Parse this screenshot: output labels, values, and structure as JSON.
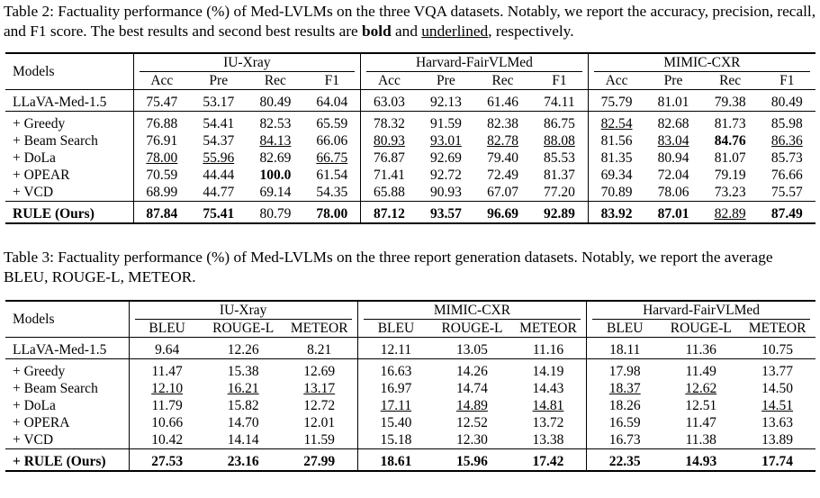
{
  "table2": {
    "caption": [
      "Table 2: Factuality performance (%) of Med-LVLMs on the three VQA datasets. Notably, we report the accuracy, precision, recall, and F1 score. The best results and second best results are ",
      "bold",
      " and ",
      "underlined",
      ", respectively."
    ],
    "header": {
      "models": "Models",
      "groups": [
        {
          "name": "IU-Xray",
          "columns": [
            "Acc",
            "Pre",
            "Rec",
            "F1"
          ]
        },
        {
          "name": "Harvard-FairVLMed",
          "columns": [
            "Acc",
            "Pre",
            "Rec",
            "F1"
          ]
        },
        {
          "name": "MIMIC-CXR",
          "columns": [
            "Acc",
            "Pre",
            "Rec",
            "F1"
          ]
        }
      ]
    },
    "row_groups": [
      [
        {
          "model": "LLaVA-Med-1.5",
          "cells": [
            "75.47",
            "53.17",
            "80.49",
            "64.04",
            "63.03",
            "92.13",
            "61.46",
            "74.11",
            "75.79",
            "81.01",
            "79.38",
            "80.49"
          ]
        }
      ],
      [
        {
          "model": "+ Greedy",
          "cells": [
            "76.88",
            "54.41",
            "82.53",
            "65.59",
            "78.32",
            "91.59",
            "82.38",
            "86.75",
            {
              "text": "82.54",
              "style": "underline"
            },
            "82.68",
            "81.73",
            "85.98"
          ]
        },
        {
          "model": "+ Beam Search",
          "cells": [
            "76.91",
            "54.37",
            {
              "text": "84.13",
              "style": "underline"
            },
            "66.06",
            {
              "text": "80.93",
              "style": "underline"
            },
            {
              "text": "93.01",
              "style": "underline"
            },
            {
              "text": "82.78",
              "style": "underline"
            },
            {
              "text": "88.08",
              "style": "underline"
            },
            "81.56",
            {
              "text": "83.04",
              "style": "underline"
            },
            {
              "text": "84.76",
              "style": "bold"
            },
            {
              "text": "86.36",
              "style": "underline"
            }
          ]
        },
        {
          "model": "+ DoLa",
          "cells": [
            {
              "text": "78.00",
              "style": "underline"
            },
            {
              "text": "55.96",
              "style": "underline"
            },
            "82.69",
            {
              "text": "66.75",
              "style": "underline"
            },
            "76.87",
            "92.69",
            "79.40",
            "85.53",
            "81.35",
            "80.94",
            "81.07",
            "85.73"
          ]
        },
        {
          "model": "+ OPEAR",
          "cells": [
            "70.59",
            "44.44",
            {
              "text": "100.0",
              "style": "bold"
            },
            "61.54",
            "71.41",
            "92.72",
            "72.49",
            "81.37",
            "69.34",
            "72.04",
            "79.19",
            "76.66"
          ]
        },
        {
          "model": "+ VCD",
          "cells": [
            "68.99",
            "44.77",
            "69.14",
            "54.35",
            "65.88",
            "90.93",
            "67.07",
            "77.20",
            "70.89",
            "78.06",
            "73.23",
            "75.57"
          ]
        }
      ],
      [
        {
          "model": {
            "text": "RULE (Ours)",
            "style": "bold"
          },
          "cells": [
            {
              "text": "87.84",
              "style": "bold"
            },
            {
              "text": "75.41",
              "style": "bold"
            },
            "80.79",
            {
              "text": "78.00",
              "style": "bold"
            },
            {
              "text": "87.12",
              "style": "bold"
            },
            {
              "text": "93.57",
              "style": "bold"
            },
            {
              "text": "96.69",
              "style": "bold"
            },
            {
              "text": "92.89",
              "style": "bold"
            },
            {
              "text": "83.92",
              "style": "bold"
            },
            {
              "text": "87.01",
              "style": "bold"
            },
            {
              "text": "82.89",
              "style": "underline"
            },
            {
              "text": "87.49",
              "style": "bold"
            }
          ]
        }
      ]
    ]
  },
  "table3": {
    "caption": [
      "Table 3: Factuality performance (%) of Med-LVLMs on the three report generation datasets. Notably, we report the average BLEU, ROUGE-L, METEOR."
    ],
    "header": {
      "models": "Models",
      "groups": [
        {
          "name": "IU-Xray",
          "columns": [
            "BLEU",
            "ROUGE-L",
            "METEOR"
          ]
        },
        {
          "name": "MIMIC-CXR",
          "columns": [
            "BLEU",
            "ROUGE-L",
            "METEOR"
          ]
        },
        {
          "name": "Harvard-FairVLMed",
          "columns": [
            "BLEU",
            "ROUGE-L",
            "METEOR"
          ]
        }
      ]
    },
    "row_groups": [
      [
        {
          "model": "LLaVA-Med-1.5",
          "cells": [
            "9.64",
            "12.26",
            "8.21",
            "12.11",
            "13.05",
            "11.16",
            "18.11",
            "11.36",
            "10.75"
          ]
        }
      ],
      [
        {
          "model": "+ Greedy",
          "cells": [
            "11.47",
            "15.38",
            "12.69",
            "16.63",
            "14.26",
            "14.19",
            "17.98",
            "11.49",
            "13.77"
          ]
        },
        {
          "model": "+ Beam Search",
          "cells": [
            {
              "text": "12.10",
              "style": "underline"
            },
            {
              "text": "16.21",
              "style": "underline"
            },
            {
              "text": "13.17",
              "style": "underline"
            },
            "16.97",
            "14.74",
            "14.43",
            {
              "text": "18.37",
              "style": "underline"
            },
            {
              "text": "12.62",
              "style": "underline"
            },
            "14.50"
          ]
        },
        {
          "model": "+ DoLa",
          "cells": [
            "11.79",
            "15.82",
            "12.72",
            {
              "text": "17.11",
              "style": "underline"
            },
            {
              "text": "14.89",
              "style": "underline"
            },
            {
              "text": "14.81",
              "style": "underline"
            },
            "18.26",
            "12.51",
            {
              "text": "14.51",
              "style": "underline"
            }
          ]
        },
        {
          "model": "+ OPERA",
          "cells": [
            "10.66",
            "14.70",
            "12.01",
            "15.40",
            "12.52",
            "13.72",
            "16.59",
            "11.47",
            "13.63"
          ]
        },
        {
          "model": "+ VCD",
          "cells": [
            "10.42",
            "14.14",
            "11.59",
            "15.18",
            "12.30",
            "13.38",
            "16.73",
            "11.38",
            "13.89"
          ]
        }
      ],
      [
        {
          "model": {
            "text": "+ RULE (Ours)",
            "style": "bold"
          },
          "cells": [
            {
              "text": "27.53",
              "style": "bold"
            },
            {
              "text": "23.16",
              "style": "bold"
            },
            {
              "text": "27.99",
              "style": "bold"
            },
            {
              "text": "18.61",
              "style": "bold"
            },
            {
              "text": "15.96",
              "style": "bold"
            },
            {
              "text": "17.42",
              "style": "bold"
            },
            {
              "text": "22.35",
              "style": "bold"
            },
            {
              "text": "14.93",
              "style": "bold"
            },
            {
              "text": "17.74",
              "style": "bold"
            }
          ]
        }
      ]
    ]
  }
}
